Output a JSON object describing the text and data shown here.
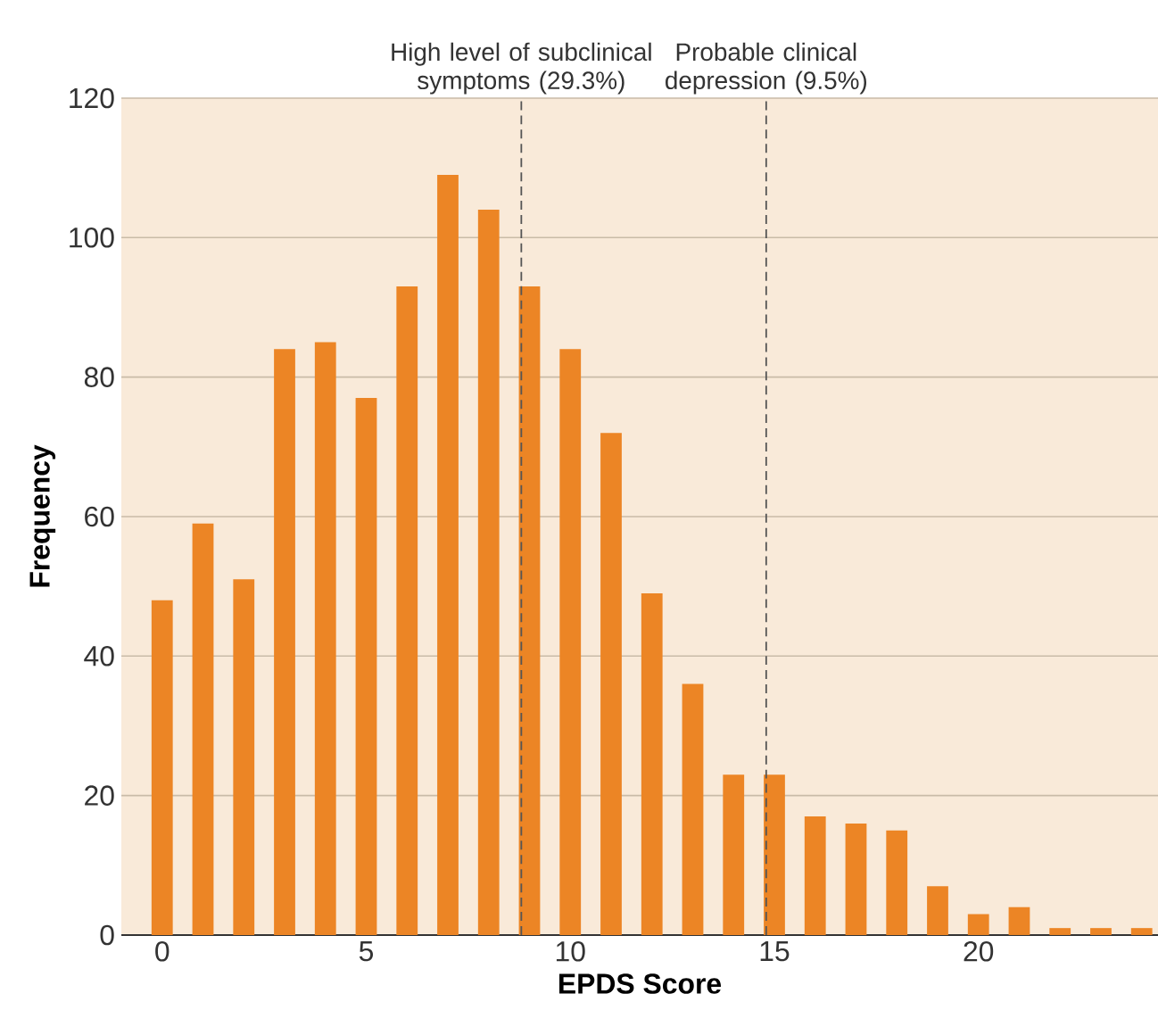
{
  "chart_data": {
    "type": "bar",
    "xlabel": "EPDS Score",
    "ylabel": "Frequency",
    "x": [
      0,
      1,
      2,
      3,
      4,
      5,
      6,
      7,
      8,
      9,
      10,
      11,
      12,
      13,
      14,
      15,
      16,
      17,
      18,
      19,
      20,
      21,
      22,
      23,
      24
    ],
    "values": [
      48,
      59,
      51,
      84,
      85,
      77,
      93,
      109,
      104,
      93,
      84,
      72,
      49,
      36,
      23,
      23,
      17,
      16,
      15,
      7,
      3,
      4,
      1,
      1,
      1
    ],
    "color": "#ec8525",
    "xlim": [
      -1,
      24.4
    ],
    "xticks": [
      0,
      5,
      10,
      15,
      20
    ],
    "ylim": [
      0,
      120
    ],
    "yticks": [
      0,
      20,
      40,
      60,
      80,
      100,
      120
    ],
    "grid": "y",
    "ref_lines": [
      {
        "axis": "x",
        "value": 8.8,
        "label": "High level of subclinical symptoms (29.3%)",
        "color": "#555555",
        "line_style": "dashed"
      },
      {
        "axis": "x",
        "value": 14.8,
        "label": "Probable clinical depression (9.5%)",
        "color": "#555555",
        "line_style": "dashed"
      }
    ]
  }
}
